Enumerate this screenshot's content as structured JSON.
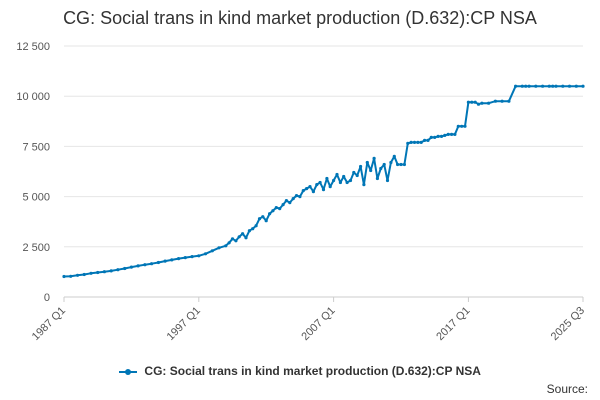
{
  "title": "CG: Social trans in kind market production (D.632):CP NSA",
  "legend_label": "CG: Social trans in kind market production (D.632):CP NSA",
  "source_label": "Source:",
  "colors": {
    "series": "#0076b6",
    "grid": "#e6e6e6",
    "axis": "#cccccc"
  },
  "chart_data": {
    "type": "line",
    "title": "CG: Social trans in kind market production (D.632):CP NSA",
    "xlabel": "",
    "ylabel": "",
    "ylim": [
      0,
      12500
    ],
    "y_ticks": [
      0,
      2500,
      5000,
      7500,
      10000,
      12500
    ],
    "y_tick_labels": [
      "0",
      "2 500",
      "5 000",
      "7 500",
      "10 000",
      "12 500"
    ],
    "x_ticks": [
      "1987 Q1",
      "1997 Q1",
      "2007 Q1",
      "2017 Q1",
      "2025 Q3"
    ],
    "x_range": [
      "1987 Q1",
      "2025 Q3"
    ],
    "grid": "horizontal",
    "legend_position": "bottom",
    "series": [
      {
        "name": "CG: Social trans in kind market production (D.632):CP NSA",
        "x": [
          "1987 Q1",
          "1987 Q3",
          "1988 Q1",
          "1988 Q3",
          "1989 Q1",
          "1989 Q3",
          "1990 Q1",
          "1990 Q3",
          "1991 Q1",
          "1991 Q3",
          "1992 Q1",
          "1992 Q3",
          "1993 Q1",
          "1993 Q3",
          "1994 Q1",
          "1994 Q3",
          "1995 Q1",
          "1995 Q3",
          "1996 Q1",
          "1996 Q3",
          "1997 Q1",
          "1997 Q3",
          "1998 Q1",
          "1998 Q3",
          "1999 Q1",
          "1999 Q2",
          "1999 Q3",
          "1999 Q4",
          "2000 Q1",
          "2000 Q2",
          "2000 Q3",
          "2000 Q4",
          "2001 Q1",
          "2001 Q2",
          "2001 Q3",
          "2001 Q4",
          "2002 Q1",
          "2002 Q2",
          "2002 Q3",
          "2002 Q4",
          "2003 Q1",
          "2003 Q2",
          "2003 Q3",
          "2003 Q4",
          "2004 Q1",
          "2004 Q2",
          "2004 Q3",
          "2004 Q4",
          "2005 Q1",
          "2005 Q2",
          "2005 Q3",
          "2005 Q4",
          "2006 Q1",
          "2006 Q2",
          "2006 Q3",
          "2006 Q4",
          "2007 Q1",
          "2007 Q2",
          "2007 Q3",
          "2007 Q4",
          "2008 Q1",
          "2008 Q2",
          "2008 Q3",
          "2008 Q4",
          "2009 Q1",
          "2009 Q2",
          "2009 Q3",
          "2009 Q4",
          "2010 Q1",
          "2010 Q2",
          "2010 Q3",
          "2010 Q4",
          "2011 Q1",
          "2011 Q2",
          "2011 Q3",
          "2011 Q4",
          "2012 Q1",
          "2012 Q2",
          "2012 Q3",
          "2012 Q4",
          "2013 Q1",
          "2013 Q2",
          "2013 Q3",
          "2013 Q4",
          "2014 Q1",
          "2014 Q2",
          "2014 Q3",
          "2014 Q4",
          "2015 Q1",
          "2015 Q2",
          "2015 Q3",
          "2015 Q4",
          "2016 Q1",
          "2016 Q2",
          "2016 Q3",
          "2016 Q4",
          "2017 Q1",
          "2017 Q2",
          "2017 Q3",
          "2017 Q4",
          "2018 Q1",
          "2018 Q3",
          "2019 Q1",
          "2019 Q3",
          "2020 Q1",
          "2020 Q3",
          "2021 Q1",
          "2021 Q2",
          "2021 Q3",
          "2022 Q1",
          "2022 Q3",
          "2023 Q1",
          "2023 Q2",
          "2023 Q3",
          "2024 Q1",
          "2024 Q3",
          "2025 Q1",
          "2025 Q3"
        ],
        "values": [
          1020,
          1030,
          1080,
          1120,
          1180,
          1220,
          1260,
          1300,
          1360,
          1420,
          1490,
          1550,
          1610,
          1660,
          1720,
          1790,
          1850,
          1910,
          1960,
          2010,
          2050,
          2150,
          2300,
          2450,
          2550,
          2700,
          2900,
          2800,
          3000,
          3150,
          2950,
          3300,
          3400,
          3550,
          3900,
          4000,
          3800,
          4150,
          4300,
          4450,
          4400,
          4600,
          4800,
          4700,
          4900,
          5050,
          5000,
          5300,
          5400,
          5500,
          5250,
          5600,
          5700,
          5350,
          5900,
          5500,
          5800,
          6100,
          5700,
          6000,
          5700,
          5800,
          6200,
          6050,
          6500,
          5600,
          6700,
          6300,
          6900,
          5900,
          6400,
          6600,
          5800,
          6700,
          7000,
          6600,
          6600,
          6600,
          7650,
          7700,
          7700,
          7700,
          7700,
          7800,
          7800,
          7950,
          7950,
          8000,
          8000,
          8050,
          8100,
          8100,
          8100,
          8500,
          8500,
          8500,
          9700,
          9700,
          9700,
          9600,
          9650,
          9650,
          9750,
          9750,
          9750,
          10500,
          10500,
          10500,
          10500,
          10500,
          10500,
          10500,
          10500,
          10500,
          10500,
          10500,
          10500,
          10500
        ]
      }
    ]
  }
}
